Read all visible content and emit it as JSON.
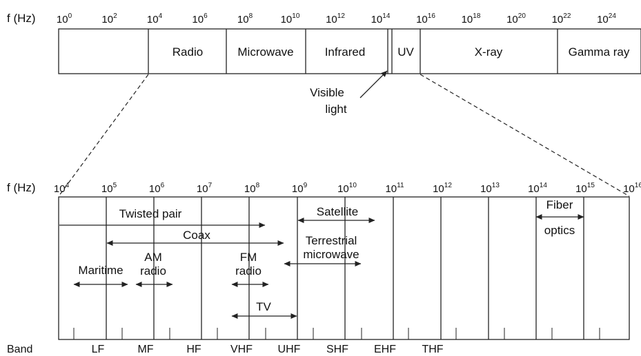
{
  "top": {
    "axis_label": "f (Hz)",
    "ticks": [
      {
        "base": "10",
        "exp": "0"
      },
      {
        "base": "10",
        "exp": "2"
      },
      {
        "base": "10",
        "exp": "4"
      },
      {
        "base": "10",
        "exp": "6"
      },
      {
        "base": "10",
        "exp": "8"
      },
      {
        "base": "10",
        "exp": "10"
      },
      {
        "base": "10",
        "exp": "12"
      },
      {
        "base": "10",
        "exp": "14"
      },
      {
        "base": "10",
        "exp": "16"
      },
      {
        "base": "10",
        "exp": "18"
      },
      {
        "base": "10",
        "exp": "20"
      },
      {
        "base": "10",
        "exp": "22"
      },
      {
        "base": "10",
        "exp": "24"
      }
    ],
    "regions": [
      "Radio",
      "Microwave",
      "Infrared",
      "UV",
      "X-ray",
      "Gamma ray"
    ],
    "visible_light": [
      "Visible",
      "light"
    ]
  },
  "bottom": {
    "axis_label": "f (Hz)",
    "ticks": [
      {
        "base": "10",
        "exp": "4"
      },
      {
        "base": "10",
        "exp": "5"
      },
      {
        "base": "10",
        "exp": "6"
      },
      {
        "base": "10",
        "exp": "7"
      },
      {
        "base": "10",
        "exp": "8"
      },
      {
        "base": "10",
        "exp": "9"
      },
      {
        "base": "10",
        "exp": "10"
      },
      {
        "base": "10",
        "exp": "11"
      },
      {
        "base": "10",
        "exp": "12"
      },
      {
        "base": "10",
        "exp": "13"
      },
      {
        "base": "10",
        "exp": "14"
      },
      {
        "base": "10",
        "exp": "15"
      },
      {
        "base": "10",
        "exp": "16"
      }
    ],
    "media": {
      "twisted_pair": "Twisted pair",
      "coax": "Coax",
      "satellite": "Satellite",
      "terrestrial": [
        "Terrestrial",
        "microwave"
      ],
      "fiber": [
        "Fiber",
        "optics"
      ],
      "maritime": "Maritime",
      "am_radio": [
        "AM",
        "radio"
      ],
      "fm_radio": [
        "FM",
        "radio"
      ],
      "tv": "TV"
    },
    "band_label": "Band",
    "bands": [
      "LF",
      "MF",
      "HF",
      "VHF",
      "UHF",
      "SHF",
      "EHF",
      "THF"
    ]
  }
}
